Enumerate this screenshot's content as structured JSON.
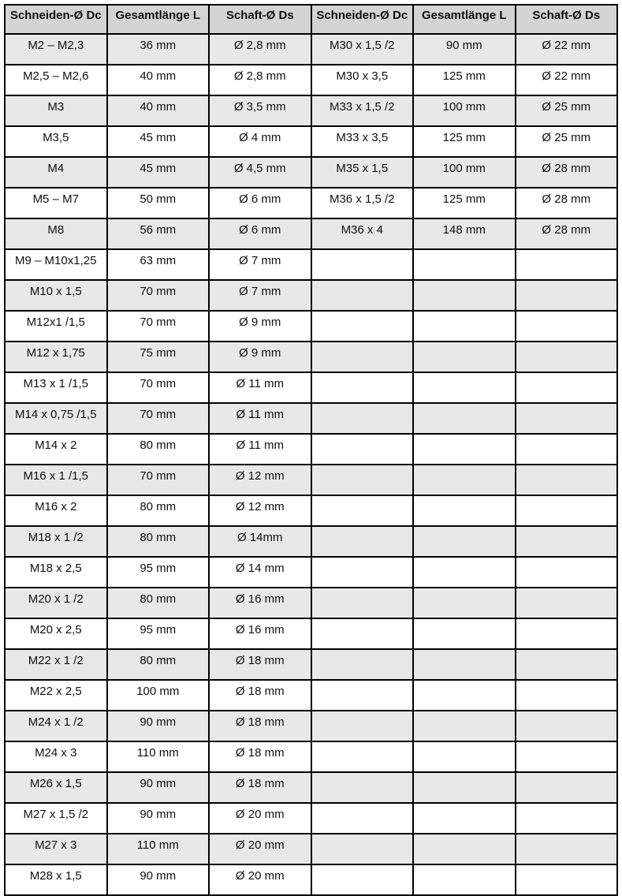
{
  "headers": [
    "Schneiden-Ø Dc",
    "Gesamtlänge L",
    "Schaft-Ø Ds",
    "Schneiden-Ø Dc",
    "Gesamtlänge L",
    "Schaft-Ø Ds"
  ],
  "rows": [
    [
      "M2 – M2,3",
      "36 mm",
      "Ø 2,8 mm",
      "M30 x 1,5 /2",
      "90 mm",
      "Ø 22 mm"
    ],
    [
      "M2,5 – M2,6",
      "40 mm",
      "Ø 2,8 mm",
      "M30 x 3,5",
      "125 mm",
      "Ø 22 mm"
    ],
    [
      "M3",
      "40 mm",
      "Ø 3,5 mm",
      "M33 x 1,5 /2",
      "100 mm",
      "Ø 25 mm"
    ],
    [
      "M3,5",
      "45 mm",
      "Ø 4 mm",
      "M33 x 3,5",
      "125 mm",
      "Ø 25 mm"
    ],
    [
      "M4",
      "45 mm",
      "Ø 4,5 mm",
      "M35 x 1,5",
      "100 mm",
      "Ø 28 mm"
    ],
    [
      "M5 – M7",
      "50 mm",
      "Ø 6 mm",
      "M36 x 1,5 /2",
      "125 mm",
      "Ø 28 mm"
    ],
    [
      "M8",
      "56 mm",
      "Ø 6 mm",
      "M36 x 4",
      "148 mm",
      "Ø 28 mm"
    ],
    [
      "M9 – M10x1,25",
      "63 mm",
      "Ø 7 mm",
      "",
      "",
      ""
    ],
    [
      "M10 x 1,5",
      "70 mm",
      "Ø 7 mm",
      "",
      "",
      ""
    ],
    [
      "M12x1 /1,5",
      "70 mm",
      "Ø 9 mm",
      "",
      "",
      ""
    ],
    [
      "M12 x 1,75",
      "75 mm",
      "Ø 9 mm",
      "",
      "",
      ""
    ],
    [
      "M13 x 1 /1,5",
      "70 mm",
      "Ø 11 mm",
      "",
      "",
      ""
    ],
    [
      "M14 x 0,75 /1,5",
      "70 mm",
      "Ø 11 mm",
      "",
      "",
      ""
    ],
    [
      "M14 x 2",
      "80 mm",
      "Ø 11 mm",
      "",
      "",
      ""
    ],
    [
      "M16 x 1 /1,5",
      "70 mm",
      "Ø 12 mm",
      "",
      "",
      ""
    ],
    [
      "M16 x 2",
      "80 mm",
      "Ø 12 mm",
      "",
      "",
      ""
    ],
    [
      "M18 x 1 /2",
      "80 mm",
      "Ø 14mm",
      "",
      "",
      ""
    ],
    [
      "M18 x 2,5",
      "95 mm",
      "Ø 14 mm",
      "",
      "",
      ""
    ],
    [
      "M20 x 1 /2",
      "80 mm",
      "Ø 16 mm",
      "",
      "",
      ""
    ],
    [
      "M20 x 2,5",
      "95 mm",
      "Ø 16 mm",
      "",
      "",
      ""
    ],
    [
      "M22 x 1 /2",
      "80 mm",
      "Ø 18 mm",
      "",
      "",
      ""
    ],
    [
      "M22 x 2,5",
      "100 mm",
      "Ø 18 mm",
      "",
      "",
      ""
    ],
    [
      "M24 x 1 /2",
      "90 mm",
      "Ø 18 mm",
      "",
      "",
      ""
    ],
    [
      "M24 x 3",
      "110 mm",
      "Ø 18 mm",
      "",
      "",
      ""
    ],
    [
      "M26 x 1,5",
      "90 mm",
      "Ø 18 mm",
      "",
      "",
      ""
    ],
    [
      "M27 x 1,5 /2",
      "90 mm",
      "Ø 20 mm",
      "",
      "",
      ""
    ],
    [
      "M27 x 3",
      "110 mm",
      "Ø 20 mm",
      "",
      "",
      ""
    ],
    [
      "M28 x 1,5",
      "90 mm",
      "Ø 20 mm",
      "",
      "",
      ""
    ]
  ],
  "colors": {
    "header_bg": "#d4d4d4",
    "stripe_bg": "#e8e8e8",
    "border": "#000000"
  }
}
